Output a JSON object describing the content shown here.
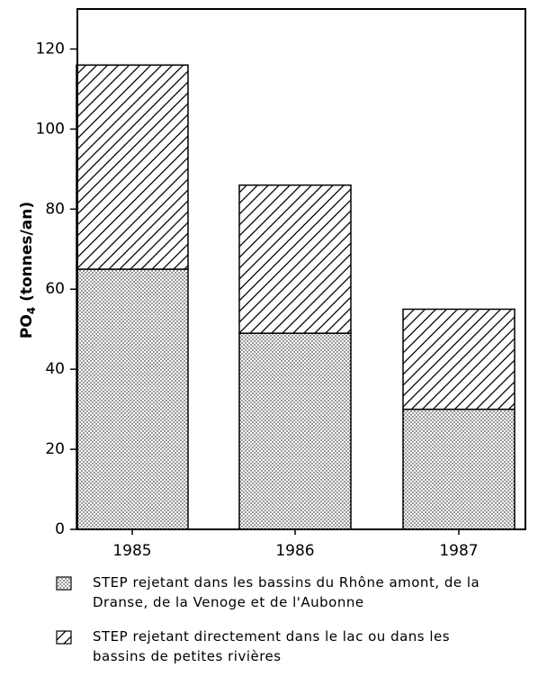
{
  "chart_data": {
    "type": "stacked-bar",
    "ylabel_parts": [
      "PO",
      "4",
      " (tonnes/an)"
    ],
    "categories": [
      "1985",
      "1986",
      "1987"
    ],
    "series": [
      {
        "name": "STEP rejetant dans les bassins du Rhône amont, de la Dranse, de la Venoge et de l'Aubonne",
        "color": "#000000",
        "pattern": "dots",
        "values": [
          65,
          49,
          30
        ]
      },
      {
        "name": "STEP rejetant directement dans le lac ou dans les bassins de petites rivières",
        "color": "#000000",
        "pattern": "hatch",
        "values": [
          51,
          37,
          25
        ]
      }
    ],
    "ylim": [
      0,
      130
    ],
    "yticks": [
      0,
      20,
      40,
      60,
      80,
      100,
      120
    ],
    "grid": false
  }
}
